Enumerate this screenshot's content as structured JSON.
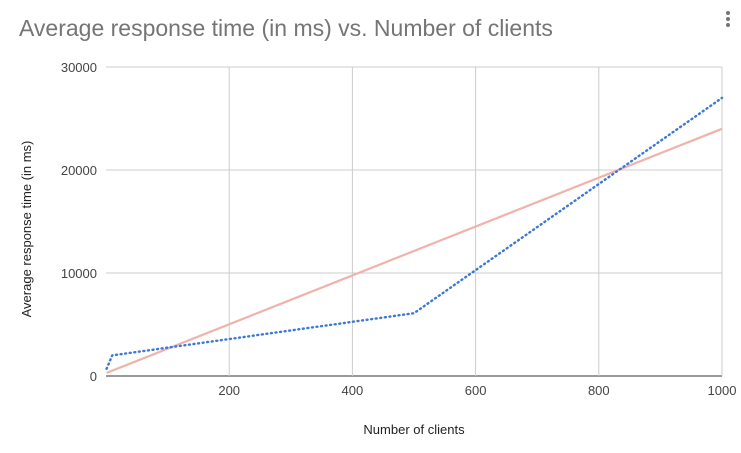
{
  "chart": {
    "menu_icon": "more-vert-icon"
  },
  "chart_data": {
    "type": "line",
    "title": "Average response time (in ms) vs. Number of clients",
    "xlabel": "Number of clients",
    "ylabel": "Average response time (in ms)",
    "xlim": [
      0,
      1000
    ],
    "ylim": [
      0,
      30000
    ],
    "x_ticks": [
      200,
      400,
      600,
      800,
      1000
    ],
    "x_tick_labels": [
      "200",
      "400",
      "600",
      "800",
      "1000"
    ],
    "y_ticks": [
      0,
      10000,
      20000,
      30000
    ],
    "y_tick_labels": [
      "0",
      "10000",
      "20000",
      "30000"
    ],
    "grid": true,
    "legend": "none",
    "series": [
      {
        "x": [
          1,
          10,
          500,
          1000
        ],
        "y": [
          700,
          2000,
          6100,
          27000
        ],
        "color": "#3c78d8",
        "style": "dotted"
      },
      {
        "x": [
          1,
          1000
        ],
        "y": [
          300,
          24000
        ],
        "color": "#f0b3ab",
        "style": "solid"
      }
    ]
  }
}
